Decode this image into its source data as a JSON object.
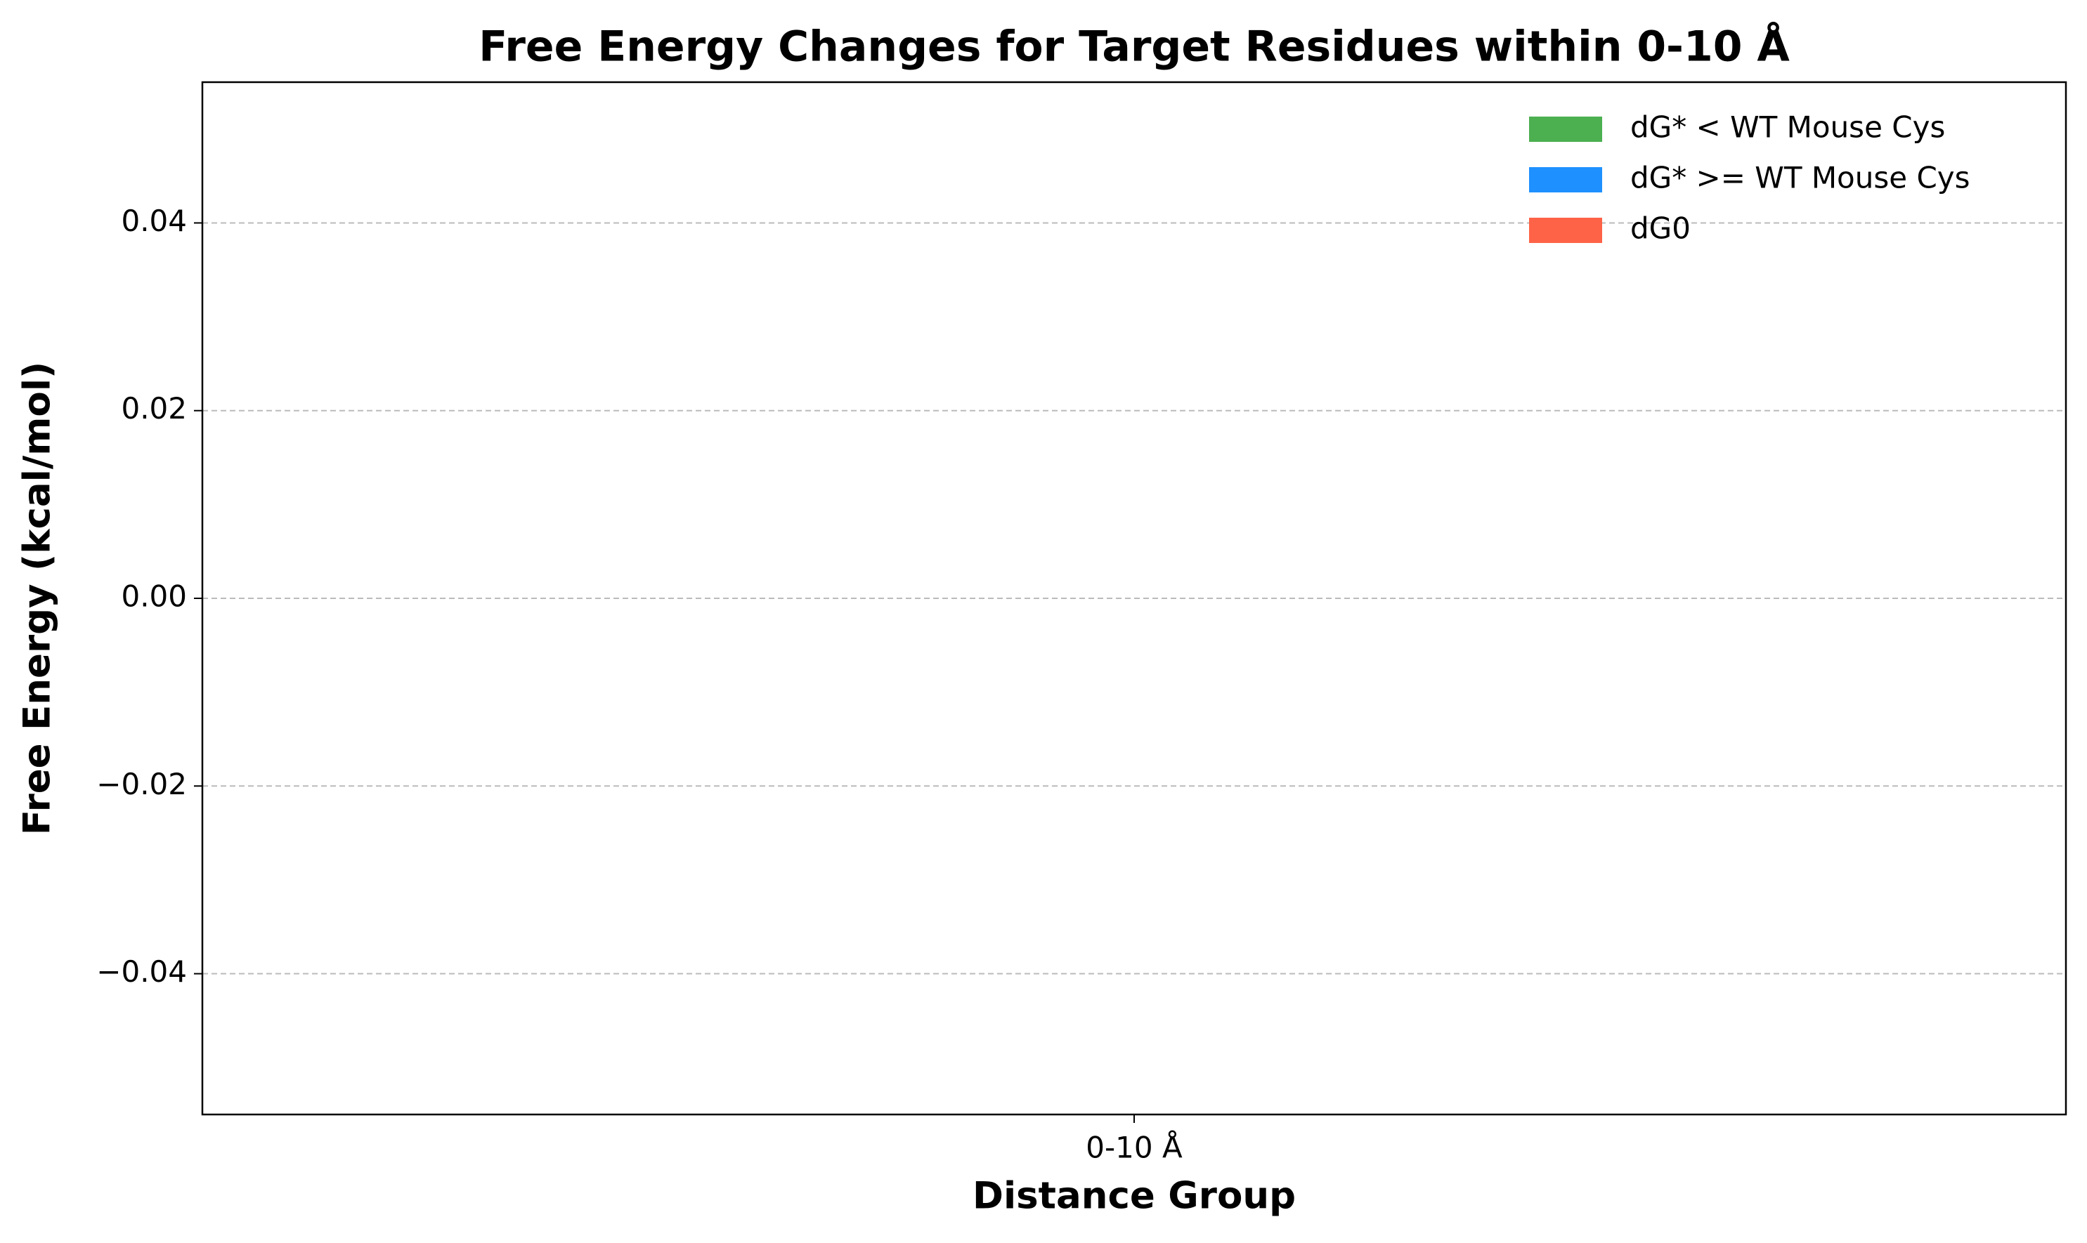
{
  "chart_data": {
    "type": "bar",
    "title": "Free Energy Changes for Target Residues within 0-10 Å",
    "x_label": "Distance Group",
    "y_label": "Free Energy (kcal/mol)",
    "categories": [
      "0-10 Å"
    ],
    "series": [
      {
        "name": "dG* < WT Mouse Cys",
        "color": "#4caf50",
        "values": [
          0
        ]
      },
      {
        "name": "dG* >= WT Mouse Cys",
        "color": "#1e90ff",
        "values": [
          0
        ]
      },
      {
        "name": "dG0",
        "color": "#ff6347",
        "values": [
          0
        ]
      }
    ],
    "ylim": [
      -0.055,
      0.055
    ],
    "yticks": [
      {
        "value": -0.04,
        "label": "−0.04"
      },
      {
        "value": -0.02,
        "label": "−0.02"
      },
      {
        "value": 0,
        "label": "0.00"
      },
      0.02,
      0.04
    ],
    "grid": true,
    "legend": "upper right"
  }
}
